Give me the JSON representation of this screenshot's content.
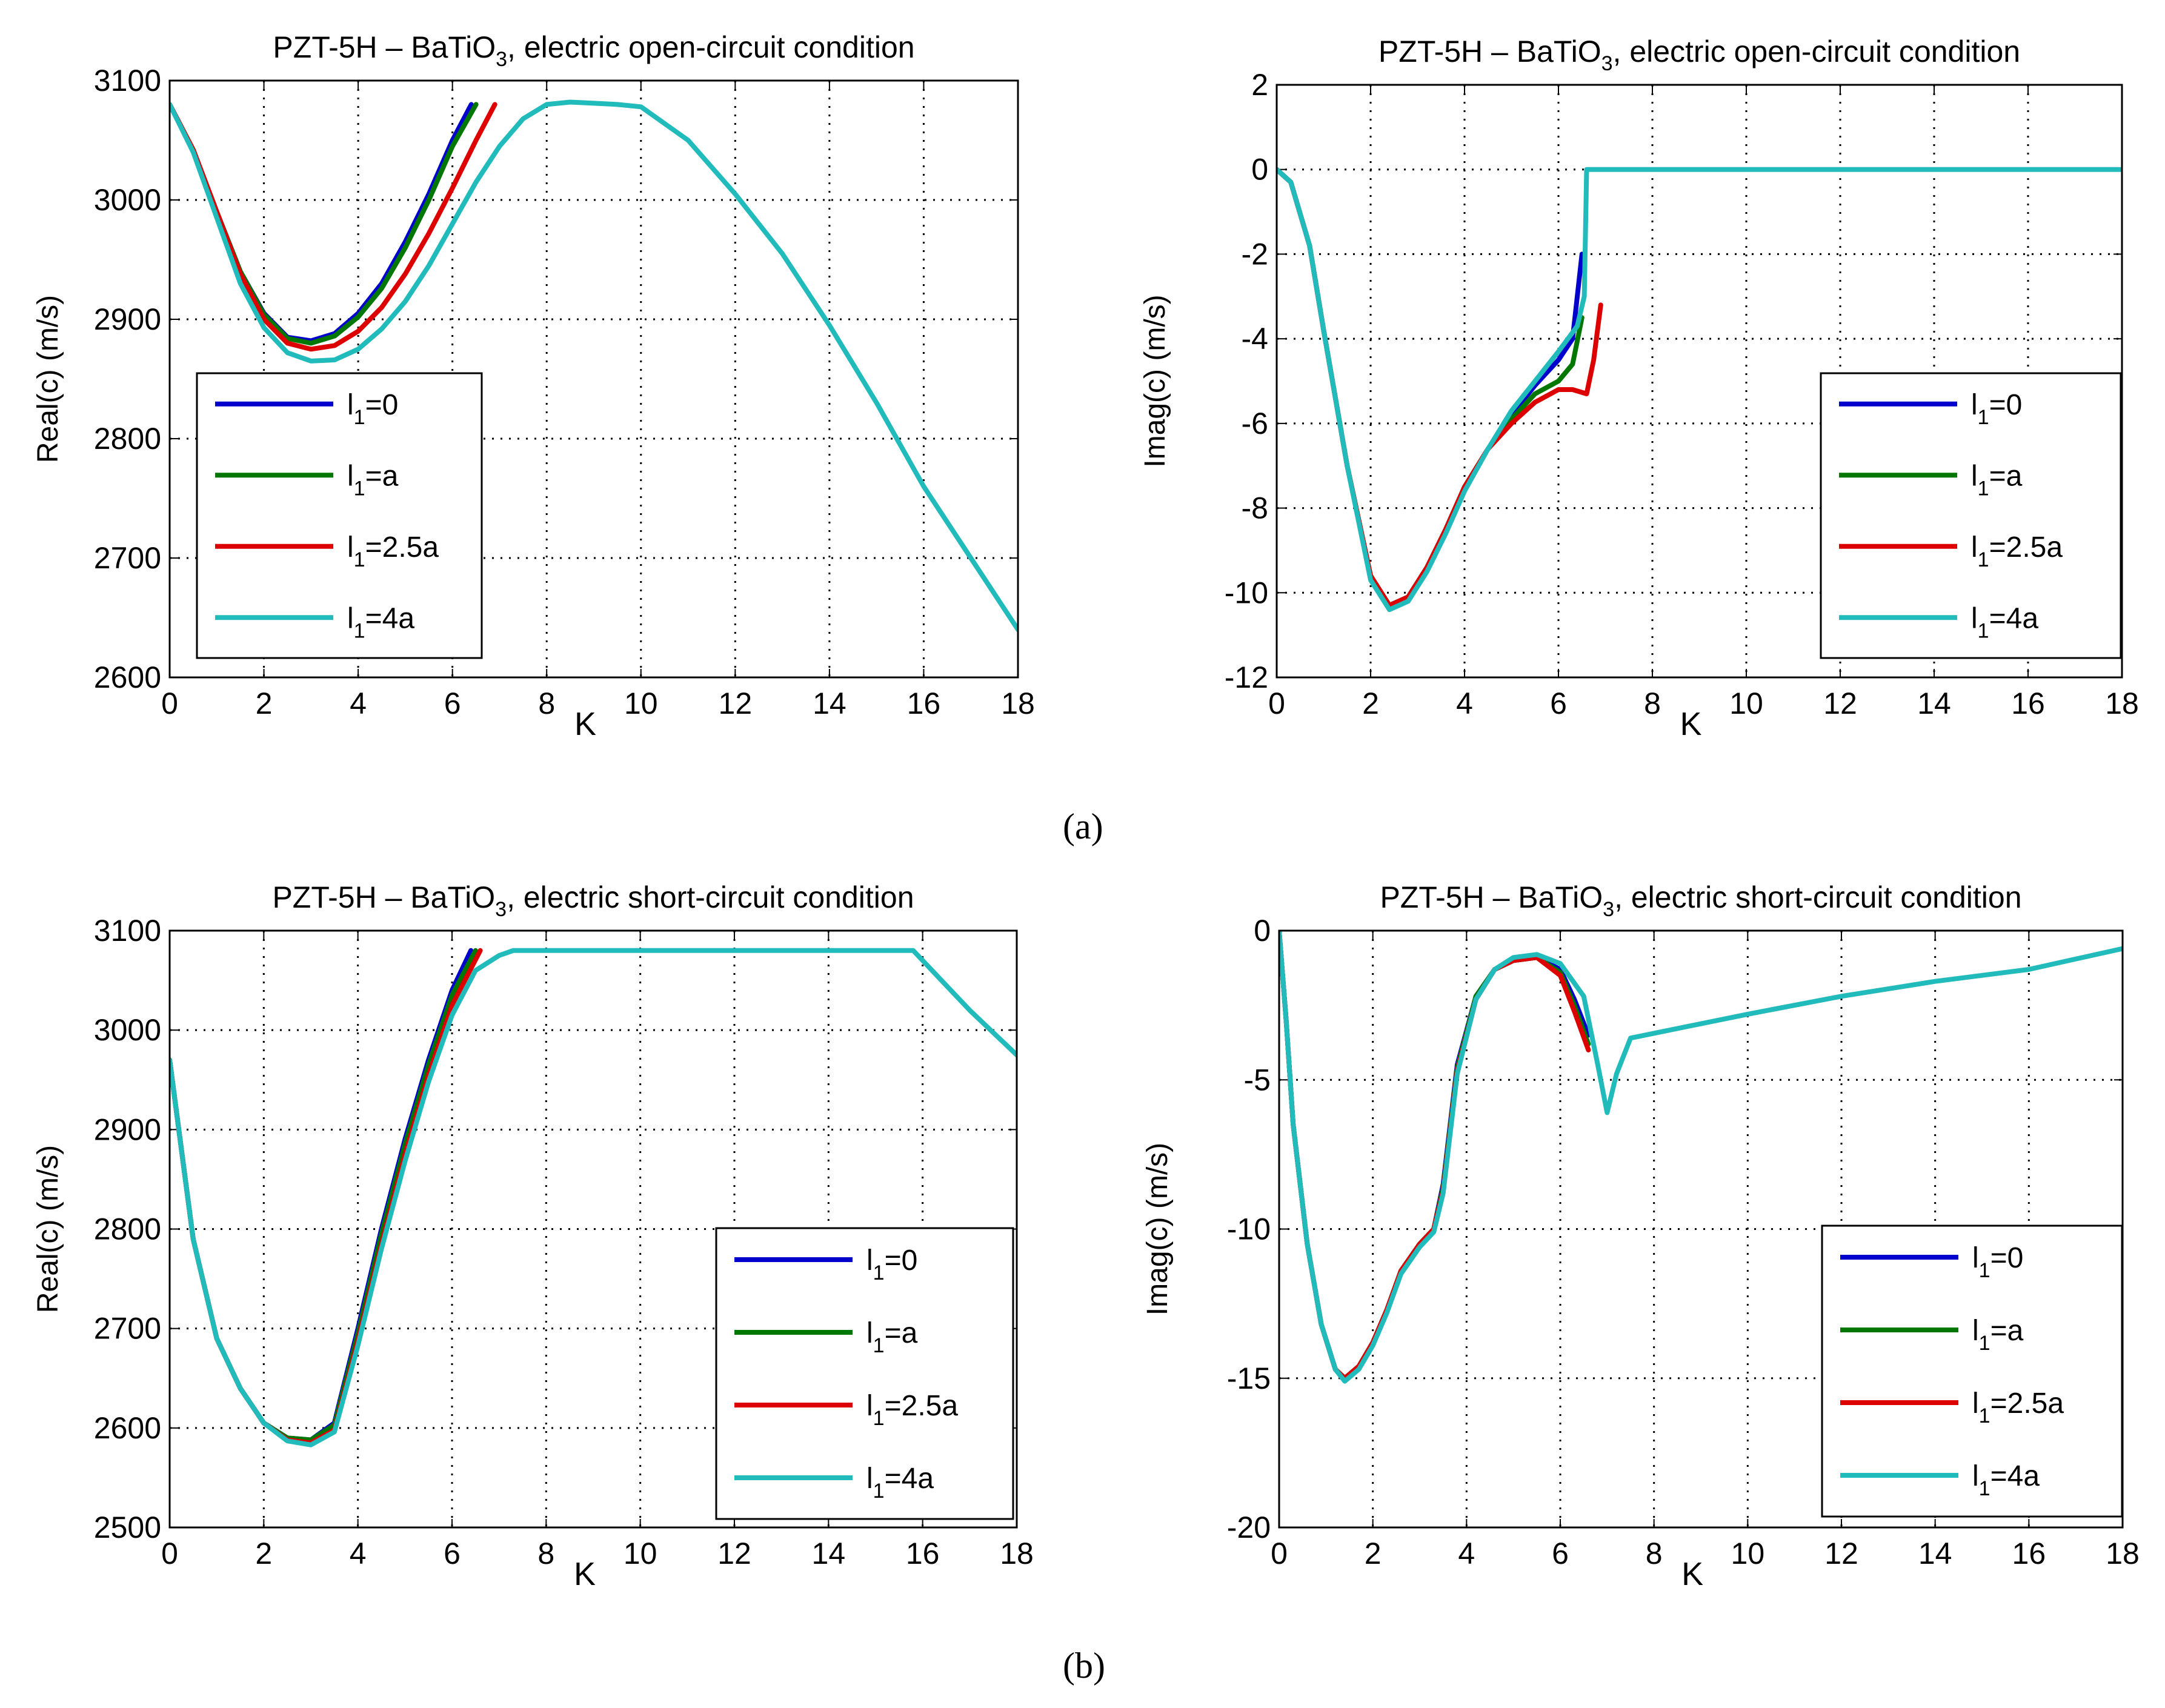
{
  "figure": {
    "panel_labels": [
      "(a)",
      "(b)"
    ]
  },
  "chart_data": [
    {
      "type": "line",
      "title": "PZT-5H – BaTiO3, electric open-circuit condition",
      "title_sub_pos": "BaTiO3",
      "xlabel": "K",
      "ylabel": "Real(c) (m/s)",
      "xlim": [
        0,
        18
      ],
      "ylim": [
        2600,
        3100
      ],
      "xticks": [
        0,
        2,
        4,
        6,
        8,
        10,
        12,
        14,
        16,
        18
      ],
      "yticks": [
        2600,
        2700,
        2800,
        2900,
        3000,
        3100
      ],
      "grid": true,
      "legend_position": "bottom-left",
      "series": [
        {
          "name": "l1=0",
          "color": "#0000cc",
          "x": [
            0,
            0.5,
            1,
            1.5,
            2,
            2.5,
            3,
            3.5,
            4,
            4.5,
            5,
            5.5,
            6,
            6.4
          ],
          "y": [
            3080,
            3042,
            2990,
            2940,
            2905,
            2885,
            2882,
            2888,
            2905,
            2930,
            2965,
            3005,
            3050,
            3080
          ]
        },
        {
          "name": "l1=a",
          "color": "#007700",
          "x": [
            0,
            0.5,
            1,
            1.5,
            2,
            2.5,
            3,
            3.5,
            4,
            4.5,
            5,
            5.5,
            6,
            6.5
          ],
          "y": [
            3080,
            3042,
            2990,
            2940,
            2904,
            2884,
            2880,
            2886,
            2902,
            2926,
            2960,
            3000,
            3045,
            3080
          ]
        },
        {
          "name": "l1=2.5a",
          "color": "#dd0000",
          "x": [
            0,
            0.5,
            1,
            1.5,
            2,
            2.5,
            3,
            3.5,
            4,
            4.5,
            5,
            5.5,
            6,
            6.5,
            6.9
          ],
          "y": [
            3080,
            3042,
            2990,
            2938,
            2900,
            2880,
            2875,
            2878,
            2890,
            2910,
            2938,
            2972,
            3010,
            3050,
            3080
          ]
        },
        {
          "name": "l1=4a",
          "color": "#22bbbb",
          "x": [
            0,
            0.5,
            1,
            1.5,
            2,
            2.5,
            3,
            3.5,
            4,
            4.5,
            5,
            5.5,
            6,
            6.5,
            7,
            7.5,
            8,
            8.5,
            9,
            9.5,
            10,
            11,
            12,
            13,
            14,
            15,
            16,
            17,
            18
          ],
          "y": [
            3080,
            3040,
            2985,
            2930,
            2893,
            2872,
            2865,
            2866,
            2875,
            2892,
            2915,
            2945,
            2980,
            3015,
            3045,
            3068,
            3080,
            3082,
            3081,
            3080,
            3078,
            3050,
            3005,
            2955,
            2895,
            2830,
            2760,
            2700,
            2640
          ]
        }
      ]
    },
    {
      "type": "line",
      "title": "PZT-5H – BaTiO3, electric open-circuit  condition",
      "xlabel": "K",
      "ylabel": "Imag(c) (m/s)",
      "xlim": [
        0,
        18
      ],
      "ylim": [
        -12,
        2
      ],
      "xticks": [
        0,
        2,
        4,
        6,
        8,
        10,
        12,
        14,
        16,
        18
      ],
      "yticks": [
        -12,
        -10,
        -8,
        -6,
        -4,
        -2,
        0,
        2
      ],
      "grid": true,
      "legend_position": "bottom-right",
      "series": [
        {
          "name": "l1=0",
          "color": "#0000cc",
          "x": [
            0,
            0.3,
            0.7,
            1,
            1.5,
            2,
            2.4,
            2.8,
            3.2,
            3.6,
            4,
            4.5,
            5,
            5.5,
            6,
            6.3,
            6.5
          ],
          "y": [
            0,
            -0.3,
            -1.8,
            -3.8,
            -7,
            -9.6,
            -10.3,
            -10.1,
            -9.4,
            -8.5,
            -7.5,
            -6.6,
            -5.8,
            -5.1,
            -4.5,
            -4.0,
            -2.0
          ]
        },
        {
          "name": "l1=a",
          "color": "#007700",
          "x": [
            0,
            0.3,
            0.7,
            1,
            1.5,
            2,
            2.4,
            2.8,
            3.2,
            3.6,
            4,
            4.5,
            5,
            5.5,
            6,
            6.3,
            6.5
          ],
          "y": [
            0,
            -0.3,
            -1.8,
            -3.8,
            -7,
            -9.6,
            -10.3,
            -10.1,
            -9.4,
            -8.5,
            -7.5,
            -6.6,
            -5.9,
            -5.3,
            -5.0,
            -4.6,
            -3.5
          ]
        },
        {
          "name": "l1=2.5a",
          "color": "#dd0000",
          "x": [
            0,
            0.3,
            0.7,
            1,
            1.5,
            2,
            2.4,
            2.8,
            3.2,
            3.6,
            4,
            4.5,
            5,
            5.5,
            6,
            6.3,
            6.6,
            6.75,
            6.9
          ],
          "y": [
            0,
            -0.3,
            -1.8,
            -3.8,
            -7,
            -9.6,
            -10.3,
            -10.1,
            -9.4,
            -8.5,
            -7.5,
            -6.6,
            -6.0,
            -5.5,
            -5.2,
            -5.2,
            -5.3,
            -4.5,
            -3.2
          ]
        },
        {
          "name": "l1=4a",
          "color": "#22bbbb",
          "x": [
            0,
            0.3,
            0.7,
            1,
            1.5,
            2,
            2.4,
            2.8,
            3.2,
            3.6,
            4,
            4.5,
            5,
            5.5,
            6,
            6.4,
            6.55,
            6.6,
            7,
            8,
            10,
            12,
            14,
            16,
            18
          ],
          "y": [
            0,
            -0.3,
            -1.8,
            -3.8,
            -7,
            -9.7,
            -10.4,
            -10.2,
            -9.5,
            -8.6,
            -7.6,
            -6.6,
            -5.7,
            -5.0,
            -4.3,
            -3.7,
            -3.0,
            0,
            0,
            0,
            0,
            0,
            0,
            0,
            0
          ]
        }
      ]
    },
    {
      "type": "line",
      "title": "PZT-5H – BaTiO3, electric short-circuit condition",
      "xlabel": "K",
      "ylabel": "Real(c) (m/s)",
      "xlim": [
        0,
        18
      ],
      "ylim": [
        2500,
        3100
      ],
      "xticks": [
        0,
        2,
        4,
        6,
        8,
        10,
        12,
        14,
        16,
        18
      ],
      "yticks": [
        2500,
        2600,
        2700,
        2800,
        2900,
        3000,
        3100
      ],
      "grid": true,
      "legend_position": "bottom-right",
      "series": [
        {
          "name": "l1=0",
          "color": "#0000cc",
          "x": [
            0,
            0.5,
            1,
            1.5,
            2,
            2.5,
            3,
            3.5,
            4,
            4.5,
            5,
            5.5,
            6,
            6.4
          ],
          "y": [
            2970,
            2790,
            2690,
            2640,
            2605,
            2590,
            2588,
            2605,
            2700,
            2800,
            2890,
            2970,
            3040,
            3080
          ]
        },
        {
          "name": "l1=a",
          "color": "#007700",
          "x": [
            0,
            0.5,
            1,
            1.5,
            2,
            2.5,
            3,
            3.5,
            4,
            4.5,
            5,
            5.5,
            6,
            6.5
          ],
          "y": [
            2970,
            2790,
            2690,
            2640,
            2605,
            2590,
            2588,
            2603,
            2695,
            2795,
            2885,
            2965,
            3035,
            3080
          ]
        },
        {
          "name": "l1=2.5a",
          "color": "#dd0000",
          "x": [
            0,
            0.5,
            1,
            1.5,
            2,
            2.5,
            3,
            3.5,
            4,
            4.5,
            5,
            5.5,
            6,
            6.6
          ],
          "y": [
            2970,
            2790,
            2690,
            2640,
            2605,
            2588,
            2585,
            2598,
            2688,
            2785,
            2875,
            2955,
            3025,
            3080
          ]
        },
        {
          "name": "l1=4a",
          "color": "#22bbbb",
          "x": [
            0,
            0.5,
            1,
            1.5,
            2,
            2.5,
            3,
            3.5,
            4,
            4.5,
            5,
            5.5,
            6,
            6.5,
            7,
            7.3,
            8,
            10,
            12,
            14,
            15.8,
            17,
            18
          ],
          "y": [
            2970,
            2790,
            2690,
            2640,
            2605,
            2587,
            2583,
            2596,
            2683,
            2780,
            2868,
            2948,
            3015,
            3060,
            3075,
            3080,
            3080,
            3080,
            3080,
            3080,
            3080,
            3020,
            2975
          ]
        }
      ]
    },
    {
      "type": "line",
      "title": "PZT-5H – BaTiO3, electric short-circuit  condition",
      "xlabel": "K",
      "ylabel": "Imag(c) (m/s)",
      "xlim": [
        0,
        18
      ],
      "ylim": [
        -20,
        0
      ],
      "xticks": [
        0,
        2,
        4,
        6,
        8,
        10,
        12,
        14,
        16,
        18
      ],
      "yticks": [
        -20,
        -15,
        -10,
        -5,
        0
      ],
      "grid": true,
      "legend_position": "bottom-right",
      "series": [
        {
          "name": "l1=0",
          "color": "#0000cc",
          "x": [
            0,
            0.15,
            0.3,
            0.6,
            0.9,
            1.2,
            1.4,
            1.7,
            2,
            2.3,
            2.6,
            3,
            3.3,
            3.5,
            3.8,
            4.2,
            4.6,
            5,
            5.5,
            6,
            6.3,
            6.6
          ],
          "y": [
            0,
            -3,
            -6.5,
            -10.5,
            -13.2,
            -14.7,
            -15.0,
            -14.6,
            -13.8,
            -12.7,
            -11.4,
            -10.5,
            -10.0,
            -8.5,
            -4.5,
            -2.2,
            -1.3,
            -1.0,
            -0.9,
            -1.3,
            -2.3,
            -3.5
          ]
        },
        {
          "name": "l1=a",
          "color": "#007700",
          "x": [
            0,
            0.15,
            0.3,
            0.6,
            0.9,
            1.2,
            1.4,
            1.7,
            2,
            2.3,
            2.6,
            3,
            3.3,
            3.5,
            3.8,
            4.2,
            4.6,
            5,
            5.5,
            6,
            6.3,
            6.6
          ],
          "y": [
            0,
            -3,
            -6.5,
            -10.5,
            -13.2,
            -14.7,
            -15.0,
            -14.6,
            -13.8,
            -12.7,
            -11.4,
            -10.5,
            -10.0,
            -8.6,
            -4.6,
            -2.2,
            -1.3,
            -1.0,
            -0.9,
            -1.4,
            -2.5,
            -3.8
          ]
        },
        {
          "name": "l1=2.5a",
          "color": "#dd0000",
          "x": [
            0,
            0.15,
            0.3,
            0.6,
            0.9,
            1.2,
            1.4,
            1.7,
            2,
            2.3,
            2.6,
            3,
            3.3,
            3.5,
            3.8,
            4.2,
            4.6,
            5,
            5.5,
            6,
            6.3,
            6.6
          ],
          "y": [
            0,
            -3,
            -6.5,
            -10.5,
            -13.2,
            -14.7,
            -15.0,
            -14.6,
            -13.8,
            -12.7,
            -11.4,
            -10.5,
            -10.0,
            -8.7,
            -4.7,
            -2.3,
            -1.3,
            -1.0,
            -0.9,
            -1.5,
            -2.7,
            -4.0
          ]
        },
        {
          "name": "l1=4a",
          "color": "#22bbbb",
          "x": [
            0,
            0.15,
            0.3,
            0.6,
            0.9,
            1.2,
            1.4,
            1.7,
            2,
            2.3,
            2.6,
            3,
            3.3,
            3.5,
            3.8,
            4.2,
            4.6,
            5,
            5.5,
            6,
            6.5,
            6.8,
            7.0,
            7.2,
            7.5,
            10,
            12,
            14,
            16,
            18
          ],
          "y": [
            0,
            -3,
            -6.5,
            -10.5,
            -13.2,
            -14.7,
            -15.1,
            -14.7,
            -13.9,
            -12.8,
            -11.5,
            -10.6,
            -10.1,
            -8.8,
            -4.8,
            -2.3,
            -1.3,
            -0.9,
            -0.8,
            -1.1,
            -2.2,
            -4.5,
            -6.1,
            -4.8,
            -3.6,
            -2.8,
            -2.2,
            -1.7,
            -1.3,
            -0.6
          ]
        }
      ]
    }
  ]
}
